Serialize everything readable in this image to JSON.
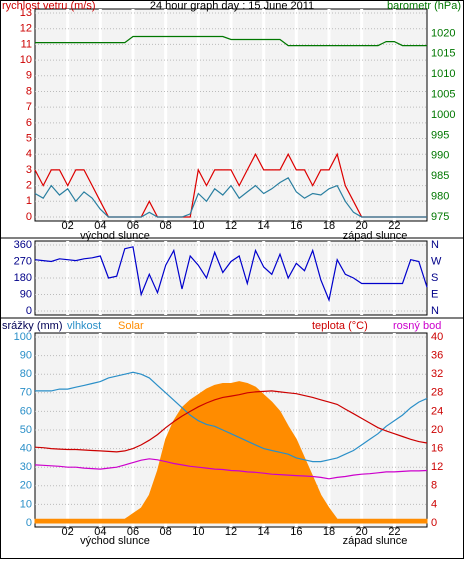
{
  "chart_data": [
    {
      "type": "line",
      "title": "24 hour graph day : 15 June 2011",
      "ylabel": "rychlost vetru (m/s)",
      "y2label": "barometr (hPa)",
      "annotations": [
        "východ slunce",
        "západ slunce"
      ],
      "xlim": [
        0,
        24
      ],
      "xticks": [
        {
          "value": 2,
          "label": "02"
        },
        {
          "value": 4,
          "label": "04"
        },
        {
          "value": 6,
          "label": "06"
        },
        {
          "value": 8,
          "label": "08"
        },
        {
          "value": 10,
          "label": "10"
        },
        {
          "value": 12,
          "label": "12"
        },
        {
          "value": 14,
          "label": "14"
        },
        {
          "value": 16,
          "label": "16"
        },
        {
          "value": 18,
          "label": "18"
        },
        {
          "value": 20,
          "label": "20"
        },
        {
          "value": 22,
          "label": "22"
        }
      ],
      "ylim": [
        0,
        13
      ],
      "yticks": [
        0,
        1,
        2,
        3,
        4,
        5,
        6,
        7,
        8,
        9,
        10,
        11,
        12,
        13
      ],
      "y2lim": [
        975,
        1025
      ],
      "y2ticks": [
        975,
        980,
        985,
        990,
        995,
        1000,
        1005,
        1010,
        1015,
        1020
      ],
      "ycolor": "#cc0000",
      "y2color": "#007700",
      "grid": true,
      "x": [
        0,
        0.5,
        1,
        1.5,
        2,
        2.5,
        3,
        3.5,
        4,
        4.5,
        5,
        5.5,
        6,
        6.5,
        7,
        7.5,
        8,
        8.5,
        9,
        9.5,
        10,
        10.5,
        11,
        11.5,
        12,
        12.5,
        13,
        13.5,
        14,
        14.5,
        15,
        15.5,
        16,
        16.5,
        17,
        17.5,
        18,
        18.5,
        19,
        19.5,
        20,
        20.5,
        21,
        21.5,
        22,
        22.5,
        23,
        23.5,
        24
      ],
      "series": [
        {
          "color": "#dd0000",
          "values": [
            3,
            2,
            3,
            3,
            2,
            3,
            3,
            2,
            1,
            0,
            0,
            0,
            0,
            0,
            1,
            0,
            0,
            0,
            0,
            0,
            3,
            2,
            3,
            3,
            3,
            2,
            3,
            4,
            3,
            3,
            3,
            4,
            3,
            3,
            2,
            3,
            3,
            4,
            2,
            1,
            0,
            0,
            0,
            0,
            0,
            0,
            0,
            0,
            0
          ]
        },
        {
          "color": "#2a7fa0",
          "values": [
            1.5,
            1.2,
            2,
            1.4,
            1.8,
            1,
            1.6,
            1.2,
            0.5,
            0,
            0,
            0,
            0,
            0,
            0.3,
            0,
            0,
            0,
            0,
            0.2,
            1.5,
            1,
            1.8,
            1.4,
            2,
            1.2,
            1.6,
            2,
            1.5,
            1.8,
            2.2,
            2.5,
            1.6,
            1.2,
            1.5,
            1.4,
            1.8,
            2,
            1,
            0.3,
            0,
            0,
            0,
            0,
            0,
            0,
            0,
            0,
            0
          ]
        },
        {
          "color": "#007700",
          "axis": "y2",
          "values": [
            1017.75,
            1017.75,
            1017.75,
            1017.75,
            1017.75,
            1017.75,
            1017.75,
            1017.75,
            1017.75,
            1017.75,
            1017.75,
            1017.75,
            1019.25,
            1019.25,
            1019.25,
            1019.25,
            1019.25,
            1019.25,
            1019.25,
            1019.25,
            1019.25,
            1019.25,
            1019.25,
            1019.25,
            1018.5,
            1018.5,
            1018.5,
            1018.5,
            1018.5,
            1018.5,
            1018.5,
            1017,
            1017,
            1017,
            1017,
            1017,
            1017,
            1017,
            1017,
            1017,
            1017,
            1017,
            1017,
            1018,
            1018,
            1017,
            1017,
            1017,
            1017
          ]
        }
      ]
    },
    {
      "type": "line",
      "xlim": [
        0,
        24
      ],
      "ylim": [
        0,
        360
      ],
      "yticks": [
        0,
        90,
        180,
        270,
        360
      ],
      "y2lim": [
        0,
        360
      ],
      "y2ticks": [
        {
          "value": 360,
          "label": "N"
        },
        {
          "value": 270,
          "label": "W"
        },
        {
          "value": 180,
          "label": "S"
        },
        {
          "value": 90,
          "label": "E"
        },
        {
          "value": 0,
          "label": "N"
        }
      ],
      "ycolor": "#000088",
      "y2color": "#000088",
      "grid": true,
      "x": [
        0,
        0.5,
        1,
        1.5,
        2,
        2.5,
        3,
        3.5,
        4,
        4.5,
        5,
        5.5,
        6,
        6.5,
        7,
        7.5,
        8,
        8.5,
        9,
        9.5,
        10,
        10.5,
        11,
        11.5,
        12,
        12.5,
        13,
        13.5,
        14,
        14.5,
        15,
        15.5,
        16,
        16.5,
        17,
        17.5,
        18,
        18.5,
        19,
        19.5,
        20,
        20.5,
        21,
        21.5,
        22,
        22.5,
        23,
        23.5,
        24
      ],
      "series": [
        {
          "color": "#0000cc",
          "values": [
            280,
            275,
            270,
            285,
            280,
            275,
            285,
            290,
            300,
            180,
            190,
            340,
            350,
            90,
            200,
            100,
            250,
            330,
            120,
            300,
            250,
            180,
            320,
            210,
            270,
            300,
            150,
            330,
            240,
            200,
            310,
            180,
            260,
            220,
            330,
            170,
            60,
            280,
            200,
            180,
            150,
            150,
            150,
            150,
            150,
            150,
            280,
            270,
            130
          ]
        }
      ]
    },
    {
      "type": "line",
      "ylabel": "srážky (mm)",
      "annotations": [
        "východ slunce",
        "západ slunce"
      ],
      "xlim": [
        0,
        24
      ],
      "xticks": [
        {
          "value": 2,
          "label": "02"
        },
        {
          "value": 4,
          "label": "04"
        },
        {
          "value": 6,
          "label": "06"
        },
        {
          "value": 8,
          "label": "08"
        },
        {
          "value": 10,
          "label": "10"
        },
        {
          "value": 12,
          "label": "12"
        },
        {
          "value": 14,
          "label": "14"
        },
        {
          "value": 16,
          "label": "16"
        },
        {
          "value": 18,
          "label": "18"
        },
        {
          "value": 20,
          "label": "20"
        },
        {
          "value": 22,
          "label": "22"
        }
      ],
      "ylim": [
        0,
        100
      ],
      "yticks": [
        0,
        10,
        20,
        30,
        40,
        50,
        60,
        70,
        80,
        90,
        100
      ],
      "y2lim": [
        0,
        40
      ],
      "y2ticks": [
        0,
        4,
        8,
        12,
        16,
        20,
        24,
        28,
        32,
        36,
        40
      ],
      "ycolor": "#2a8fc8",
      "y2color": "#cc0000",
      "grid": true,
      "x": [
        0,
        0.5,
        1,
        1.5,
        2,
        2.5,
        3,
        3.5,
        4,
        4.5,
        5,
        5.5,
        6,
        6.5,
        7,
        7.5,
        8,
        8.5,
        9,
        9.5,
        10,
        10.5,
        11,
        11.5,
        12,
        12.5,
        13,
        13.5,
        14,
        14.5,
        15,
        15.5,
        16,
        16.5,
        17,
        17.5,
        18,
        18.5,
        19,
        19.5,
        20,
        20.5,
        21,
        21.5,
        22,
        22.5,
        23,
        23.5,
        24
      ],
      "series": [
        {
          "name": "Solar",
          "color": "#ff8c00",
          "fill": true,
          "values": [
            2,
            2,
            2,
            2,
            2,
            2,
            2,
            2,
            2,
            2,
            2,
            2,
            5,
            8,
            15,
            28,
            45,
            55,
            62,
            66,
            69,
            72,
            74,
            75,
            75,
            76,
            75,
            73,
            69,
            65,
            60,
            52,
            45,
            35,
            25,
            15,
            8,
            2,
            2,
            2,
            2,
            2,
            2,
            2,
            2,
            2,
            2,
            2,
            2
          ]
        },
        {
          "name": "vlhkost",
          "color": "#2a8fc8",
          "values": [
            71,
            71,
            71,
            72,
            72,
            73,
            74,
            75,
            76,
            78,
            79,
            80,
            81,
            80,
            78,
            74,
            70,
            66,
            62,
            58,
            55,
            53,
            52,
            50,
            48,
            46,
            44,
            42,
            40,
            39,
            38,
            37,
            35,
            34,
            33,
            33,
            34,
            35,
            37,
            39,
            42,
            45,
            48,
            52,
            55,
            58,
            62,
            65,
            67
          ]
        },
        {
          "name": "teplota (°C)",
          "color": "#cc0000",
          "axis": "y2",
          "values": [
            16.3,
            16.2,
            16,
            15.9,
            15.8,
            15.8,
            15.7,
            15.6,
            15.5,
            15.4,
            15.3,
            15.5,
            16,
            16.8,
            17.8,
            19,
            20.5,
            21.8,
            23,
            24,
            25,
            25.8,
            26.5,
            27,
            27.3,
            27.6,
            28,
            28.2,
            28.3,
            28.4,
            28.2,
            28,
            27.8,
            27.4,
            27,
            26.5,
            26,
            25.5,
            24.5,
            23.5,
            22.5,
            21.5,
            20.5,
            19.8,
            19.2,
            18.6,
            18,
            17.5,
            17.2
          ]
        },
        {
          "name": "rosný bod",
          "color": "#cc00cc",
          "axis": "y2",
          "values": [
            12.5,
            12.4,
            12.3,
            12.2,
            12,
            12,
            11.8,
            11.7,
            11.6,
            11.8,
            12,
            12.5,
            13,
            13.5,
            13.8,
            13.6,
            13.2,
            12.8,
            12.5,
            12.2,
            12,
            11.8,
            11.6,
            11.5,
            11.3,
            11.2,
            11,
            10.9,
            10.7,
            10.5,
            10.4,
            10.3,
            10.2,
            10.1,
            10,
            9.8,
            9.5,
            9.8,
            10,
            10.3,
            10.5,
            10.6,
            10.8,
            11,
            11,
            11.1,
            11.2,
            11.2,
            11.3
          ]
        }
      ]
    }
  ]
}
